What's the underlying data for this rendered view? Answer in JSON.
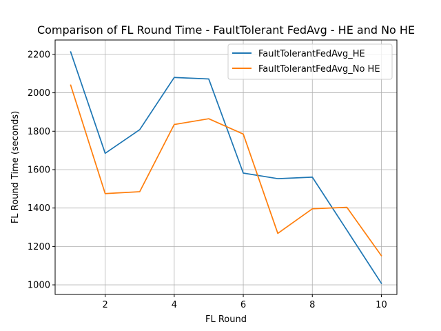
{
  "chart_data": {
    "type": "line",
    "title": "Comparison of FL Round Time - FaultTolerant FedAvg - HE and No HE",
    "xlabel": "FL Round",
    "ylabel": "FL Round Time (seconds)",
    "x": [
      1,
      2,
      3,
      4,
      5,
      6,
      7,
      8,
      9,
      10
    ],
    "xlim": [
      0.55,
      10.45
    ],
    "ylim": [
      950,
      2275
    ],
    "xticks": [
      2,
      4,
      6,
      8,
      10
    ],
    "yticks": [
      1000,
      1200,
      1400,
      1600,
      1800,
      2000,
      2200
    ],
    "grid": true,
    "legend": "top-right",
    "series": [
      {
        "name": "FaultTolerantFedAvg_HE",
        "color": "#1f77b4",
        "values": [
          2213,
          1685,
          1808,
          2080,
          2072,
          1582,
          1553,
          1561,
          1285,
          1008
        ]
      },
      {
        "name": "FaultTolerantFedAvg_No HE",
        "color": "#ff7f0e",
        "values": [
          2040,
          1475,
          1485,
          1835,
          1865,
          1785,
          1268,
          1396,
          1404,
          1152
        ]
      }
    ]
  }
}
